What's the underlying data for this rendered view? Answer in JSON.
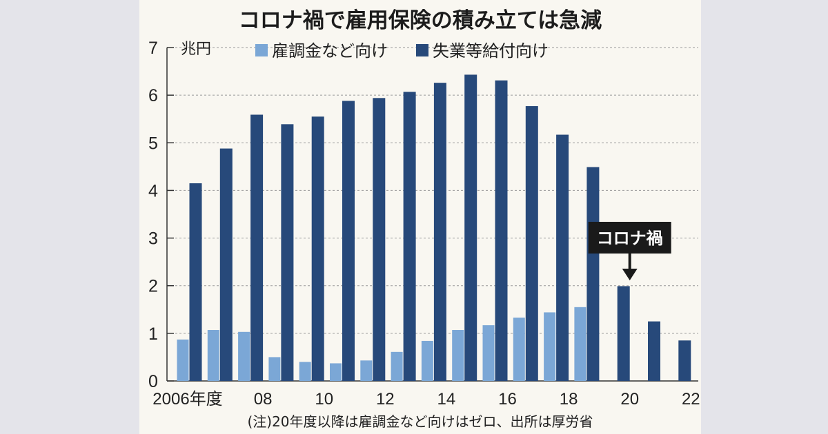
{
  "chart_data": {
    "type": "bar",
    "title": "コロナ禍で雇用保険の積み立ては急減",
    "unit_label": "兆円",
    "note": "(注)20年度以降は雇調金など向けはゼロ、出所は厚労省",
    "ylim": [
      0,
      7
    ],
    "yticks": [
      "0",
      "1",
      "2",
      "3",
      "4",
      "5",
      "6",
      "7"
    ],
    "grid": true,
    "legend_position": "top",
    "categories": [
      "2006",
      "2007",
      "2008",
      "2009",
      "2010",
      "2011",
      "2012",
      "2013",
      "2014",
      "2015",
      "2016",
      "2017",
      "2018",
      "2019",
      "2020",
      "2021",
      "2022"
    ],
    "x_tick_labels": [
      {
        "index": 0,
        "label": "2006年度"
      },
      {
        "index": 2,
        "label": "08"
      },
      {
        "index": 4,
        "label": "10"
      },
      {
        "index": 6,
        "label": "12"
      },
      {
        "index": 8,
        "label": "14"
      },
      {
        "index": 10,
        "label": "16"
      },
      {
        "index": 12,
        "label": "18"
      },
      {
        "index": 14,
        "label": "20"
      },
      {
        "index": 16,
        "label": "22"
      }
    ],
    "series": [
      {
        "name": "雇調金など向け",
        "color": "#7ba7d6",
        "values": [
          0.87,
          1.07,
          1.03,
          0.5,
          0.4,
          0.37,
          0.43,
          0.61,
          0.84,
          1.07,
          1.17,
          1.33,
          1.44,
          1.55,
          null,
          null,
          null
        ]
      },
      {
        "name": "失業等給付向け",
        "color": "#27497a",
        "values": [
          4.15,
          4.88,
          5.59,
          5.39,
          5.55,
          5.88,
          5.94,
          6.07,
          6.26,
          6.43,
          6.31,
          5.77,
          5.17,
          4.49,
          1.99,
          1.25,
          0.85
        ]
      }
    ],
    "annotation": {
      "label": "コロナ禍",
      "category_index": 14,
      "bg_color": "#1a1a1a",
      "text_color": "#ffffff"
    },
    "colors": {
      "axis": "#333333",
      "grid": "#999999"
    }
  }
}
